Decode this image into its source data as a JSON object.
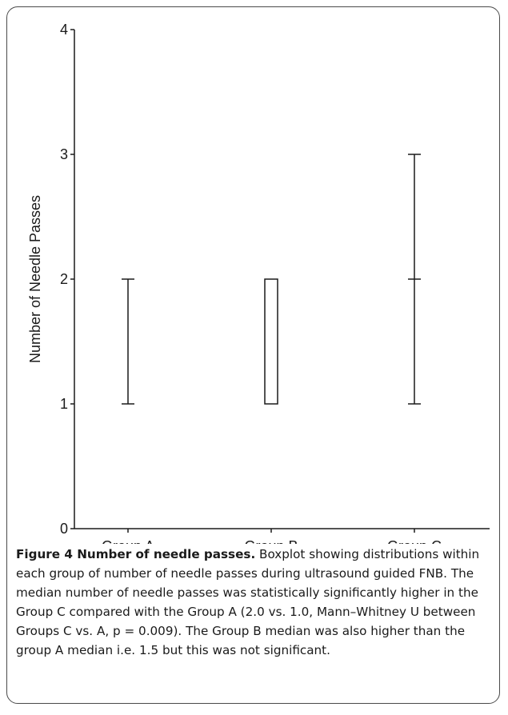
{
  "chart_data": {
    "type": "boxplot",
    "ylabel": "Number of Needle Passes",
    "xlabel": "",
    "ylim": [
      0,
      4
    ],
    "yticks": [
      "0",
      "1",
      "2",
      "3",
      "4"
    ],
    "grid": false,
    "categories": [
      "Group A",
      "Group B",
      "Group C"
    ],
    "boxes": [
      {
        "min": 1,
        "q1": 1,
        "median": 1,
        "q3": 2,
        "max": 2
      },
      {
        "min": 1,
        "q1": 1,
        "median": 1.5,
        "q3": 2,
        "max": 2
      },
      {
        "min": 1,
        "q1": 1,
        "median": 2,
        "q3": 2,
        "max": 3
      }
    ]
  },
  "caption": {
    "title": "Figure 4 Number of needle passes.",
    "text": "Boxplot showing distributions within each group of number of needle passes during ultrasound guided FNB. The median number of needle passes was statistically significantly higher in the Group C compared with the Group A (2.0 vs. 1.0, Mann–Whitney U between Groups C vs. A, p = 0.009). The Group B median was also higher than the group A median i.e. 1.5 but this was not significant."
  }
}
